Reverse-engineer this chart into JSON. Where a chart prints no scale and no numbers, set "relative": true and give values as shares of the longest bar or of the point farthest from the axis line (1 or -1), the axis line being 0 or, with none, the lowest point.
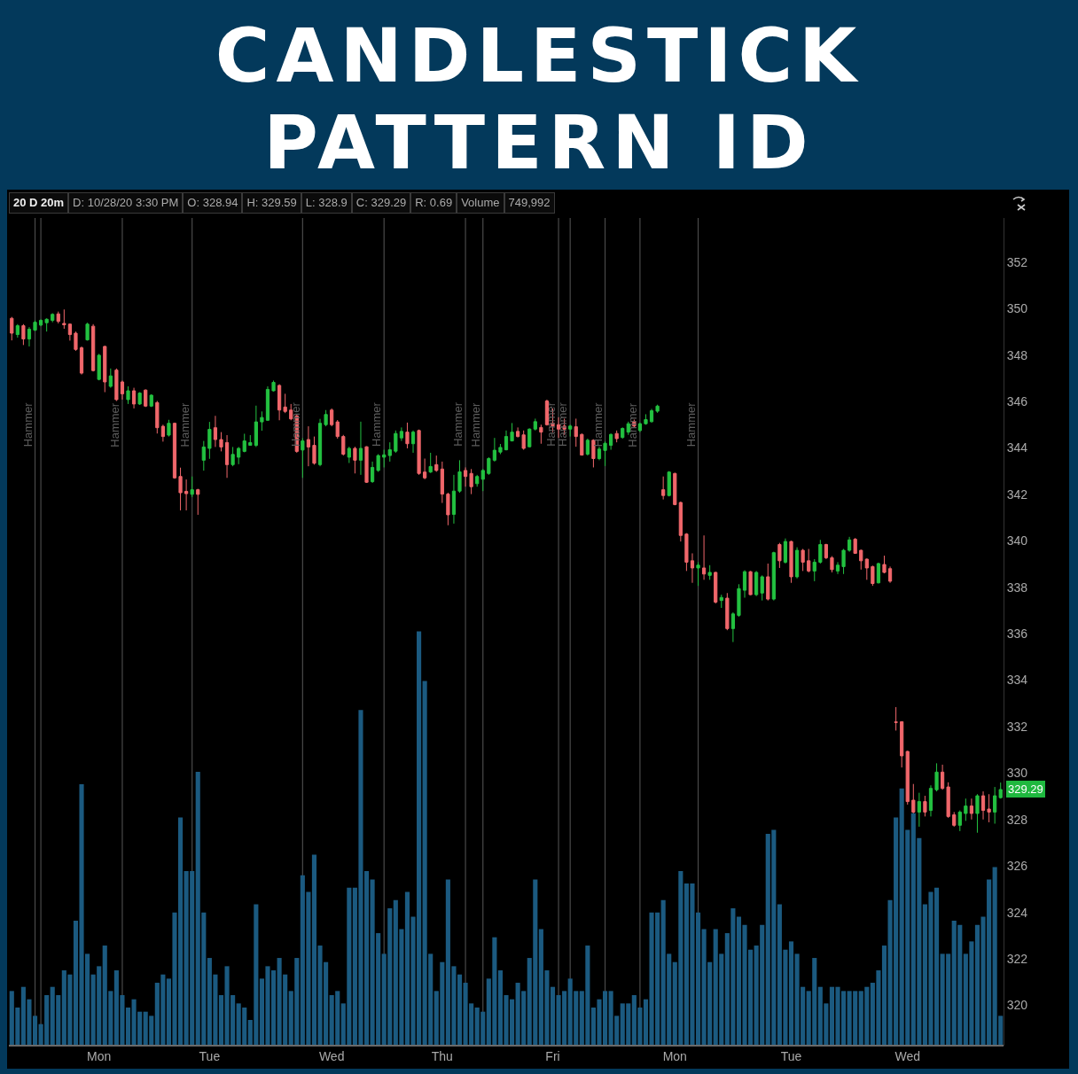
{
  "chart_data": [
    {
      "type": "candlestick",
      "title": "CANDLESTICK PATTERN ID",
      "annotations": [
        "20 D 20m",
        "D: 10/28/20 3:30 PM",
        "O: 328.94",
        "H: 329.59",
        "L: 328.9",
        "C: 329.29",
        "R: 0.69",
        "Volume",
        "749,992",
        "Hammer",
        "Hammer",
        "Hammer",
        "Hammer",
        "Hammer",
        "Hammer",
        "Hammer",
        "Hammer",
        "Hammer",
        "Hammer",
        "Hammer",
        "Hammer",
        {
          "text": "329.29",
          "y": 329.29
        }
      ],
      "categories": [
        null,
        null,
        null,
        null,
        null,
        null,
        null,
        null,
        null,
        null,
        null,
        null,
        null,
        null,
        null,
        "Mon",
        null,
        null,
        null,
        null,
        null,
        null,
        null,
        null,
        null,
        null,
        null,
        null,
        null,
        null,
        null,
        null,
        null,
        null,
        "Tue",
        null,
        null,
        null,
        null,
        null,
        null,
        null,
        null,
        null,
        null,
        null,
        null,
        null,
        null,
        null,
        null,
        null,
        null,
        null,
        null,
        "Wed",
        null,
        null,
        null,
        null,
        null,
        null,
        null,
        null,
        null,
        null,
        null,
        null,
        null,
        null,
        null,
        null,
        null,
        null,
        "Thu",
        null,
        null,
        null,
        null,
        null,
        null,
        null,
        null,
        null,
        null,
        null,
        null,
        null,
        null,
        null,
        null,
        null,
        null,
        "Fri",
        null,
        null,
        null,
        null,
        null,
        null,
        null,
        null,
        null,
        null,
        null,
        null,
        null,
        null,
        null,
        null,
        null,
        null,
        null,
        null,
        "Mon",
        null,
        null,
        null,
        null,
        null,
        null,
        null,
        null,
        null,
        null,
        null,
        null,
        null,
        null,
        null,
        null,
        null,
        null,
        null,
        "Tue",
        null,
        null,
        null,
        null,
        null,
        null,
        null,
        null,
        null,
        null,
        null,
        null,
        null,
        null,
        null,
        null,
        null,
        null,
        null,
        "Wed",
        null,
        null,
        null,
        null,
        null,
        null,
        null,
        null,
        null,
        null,
        null,
        null,
        null,
        null,
        null,
        null
      ],
      "ohlc": [
        [
          349.58,
          349.64,
          348.63,
          348.94
        ],
        [
          348.88,
          349.33,
          348.75,
          349.26
        ],
        [
          349.26,
          349.33,
          348.43,
          348.69
        ],
        [
          348.69,
          349.2,
          348.37,
          349.11
        ],
        [
          349.07,
          349.49,
          349.03,
          349.41
        ],
        [
          349.29,
          349.54,
          349.24,
          349.49
        ],
        [
          349.39,
          349.58,
          349.01,
          349.54
        ],
        [
          349.49,
          349.8,
          349.41,
          349.75
        ],
        [
          349.77,
          349.87,
          349.36,
          349.45
        ],
        [
          349.36,
          349.96,
          349.13,
          349.3
        ],
        [
          349.33,
          349.36,
          348.62,
          348.88
        ],
        [
          348.94,
          349.01,
          348.18,
          348.24
        ],
        [
          348.31,
          348.37,
          347.16,
          347.22
        ],
        [
          348.65,
          349.39,
          348.62,
          349.33
        ],
        [
          349.24,
          349.33,
          347.29,
          347.33
        ],
        [
          346.95,
          348.05,
          346.91,
          347.99
        ],
        [
          348.37,
          348.4,
          346.4,
          346.84
        ],
        [
          346.65,
          347.42,
          346.59,
          347.1
        ],
        [
          347.35,
          347.42,
          346.02,
          346.08
        ],
        [
          346.84,
          346.9,
          346.08,
          346.33
        ],
        [
          346.08,
          346.65,
          345.89,
          346.46
        ],
        [
          346.46,
          346.59,
          345.7,
          345.89
        ],
        [
          345.89,
          346.4,
          345.85,
          346.36
        ],
        [
          346.49,
          346.52,
          345.76,
          345.8
        ],
        [
          345.8,
          346.31,
          345.76,
          346.27
        ],
        [
          345.95,
          346.02,
          344.62,
          344.87
        ],
        [
          344.93,
          345,
          344.27,
          344.49
        ],
        [
          344.55,
          345.21,
          344.49,
          345.06
        ],
        [
          345.06,
          345.09,
          342.67,
          342.71
        ],
        [
          342.77,
          343.15,
          341.31,
          342.07
        ],
        [
          342.13,
          342.64,
          341.31,
          342.03
        ],
        [
          342,
          342.77,
          341.88,
          342.2
        ],
        [
          342.2,
          342.24,
          341.12,
          342
        ],
        [
          343.47,
          344.3,
          343.02,
          344.04
        ],
        [
          343.98,
          345.12,
          343.53,
          344.8
        ],
        [
          344.87,
          345.38,
          344.04,
          344.36
        ],
        [
          344.36,
          344.68,
          343.85,
          344.04
        ],
        [
          344.23,
          344.55,
          342.71,
          343.28
        ],
        [
          343.28,
          344.04,
          343.21,
          343.72
        ],
        [
          343.6,
          344.04,
          343.3,
          343.98
        ],
        [
          343.85,
          344.61,
          343.81,
          344.3
        ],
        [
          344.11,
          344.55,
          344.11,
          344.23
        ],
        [
          344.11,
          345.82,
          344.04,
          345.12
        ],
        [
          345.12,
          345.57,
          344.74,
          345.31
        ],
        [
          345.19,
          346.65,
          345.16,
          346.52
        ],
        [
          346.46,
          346.9,
          346.43,
          346.82
        ],
        [
          346.69,
          346.74,
          345.19,
          345.63
        ],
        [
          345.76,
          346.33,
          345.5,
          345.57
        ],
        [
          345.63,
          345.89,
          345.19,
          345.25
        ],
        [
          345.38,
          345.44,
          343.79,
          343.85
        ],
        [
          343.91,
          344.42,
          342.71,
          344.3
        ],
        [
          344.36,
          344.93,
          343.21,
          344.04
        ],
        [
          344.11,
          344.49,
          343.28,
          343.34
        ],
        [
          343.28,
          345.25,
          343.21,
          345.06
        ],
        [
          345,
          345.63,
          344.93,
          345.44
        ],
        [
          345.63,
          345.7,
          344.93,
          345
        ],
        [
          345.12,
          345.2,
          344.4,
          344.49
        ],
        [
          344.49,
          344.56,
          343.67,
          343.73
        ],
        [
          343.6,
          344.05,
          343.35,
          343.98
        ],
        [
          343.98,
          344.05,
          342.9,
          343.47
        ],
        [
          343.47,
          345.13,
          342.84,
          343.98
        ],
        [
          344.05,
          344.07,
          342.49,
          342.52
        ],
        [
          342.55,
          343.41,
          342.49,
          343.16
        ],
        [
          343.03,
          343.73,
          342.97,
          343.67
        ],
        [
          343.6,
          343.92,
          343.16,
          343.7
        ],
        [
          343.67,
          344.24,
          343.41,
          343.92
        ],
        [
          343.86,
          344.75,
          343.79,
          344.62
        ],
        [
          344.43,
          344.88,
          344.3,
          344.71
        ],
        [
          344.68,
          345.09,
          343.98,
          344.18
        ],
        [
          344.18,
          344.75,
          343.79,
          344.68
        ],
        [
          344.75,
          344.79,
          342.84,
          342.9
        ],
        [
          342.96,
          343.54,
          342.65,
          342.71
        ],
        [
          342.96,
          343.79,
          342.92,
          343.2
        ],
        [
          343.28,
          343.67,
          342.97,
          343.03
        ],
        [
          343.09,
          343.41,
          341.63,
          342.01
        ],
        [
          342.01,
          342.07,
          340.67,
          341.12
        ],
        [
          341.14,
          342.84,
          340.74,
          342.14
        ],
        [
          342.14,
          343.47,
          342.07,
          342.97
        ],
        [
          343.03,
          343.16,
          342.33,
          342.77
        ],
        [
          342.9,
          343.09,
          342.01,
          342.33
        ],
        [
          342.46,
          342.84,
          342.33,
          342.77
        ],
        [
          342.65,
          343.09,
          342.14,
          343.03
        ],
        [
          342.9,
          343.6,
          342.84,
          343.54
        ],
        [
          343.47,
          344.43,
          343.41,
          343.9
        ],
        [
          343.82,
          344.17,
          343.73,
          344.02
        ],
        [
          343.92,
          344.75,
          343.89,
          344.49
        ],
        [
          344.3,
          345.07,
          344.28,
          344.68
        ],
        [
          344.71,
          344.88,
          344.45,
          344.49
        ],
        [
          344.56,
          344.75,
          343.92,
          343.98
        ],
        [
          344.05,
          344.84,
          344.02,
          344.81
        ],
        [
          344.81,
          345.26,
          344.75,
          345.13
        ],
        [
          344.88,
          345,
          344.18,
          344.68
        ],
        [
          346.02,
          346.08,
          344.96,
          345
        ],
        [
          345.07,
          345.7,
          344.68,
          344.94
        ],
        [
          345,
          345.32,
          344.43,
          344.81
        ],
        [
          344.94,
          345.26,
          344.56,
          344.81
        ],
        [
          344.81,
          345,
          344.49,
          344.94
        ],
        [
          344.91,
          345.26,
          344.05,
          344.49
        ],
        [
          344.58,
          344.62,
          343.67,
          343.69
        ],
        [
          343.73,
          344.4,
          343.67,
          344.33
        ],
        [
          344.33,
          344.37,
          343.16,
          343.54
        ],
        [
          343.54,
          344.05,
          343.47,
          343.95
        ],
        [
          343.89,
          344.28,
          343.22,
          344.2
        ],
        [
          344.11,
          344.62,
          343.92,
          344.58
        ],
        [
          344.62,
          344.75,
          344.24,
          344.4
        ],
        [
          344.45,
          344.88,
          344.4,
          344.84
        ],
        [
          344.68,
          345.13,
          344.56,
          345.04
        ],
        [
          345.13,
          345.22,
          344.88,
          344.94
        ],
        [
          344.75,
          345.09,
          344.68,
          345.04
        ],
        [
          345.04,
          345.45,
          345,
          345.22
        ],
        [
          345.13,
          345.68,
          345.09,
          345.6
        ],
        [
          345.58,
          345.86,
          345.51,
          345.8
        ],
        [
          342.2,
          342.77,
          341.78,
          341.95
        ],
        [
          341.95,
          343,
          341.91,
          342.96
        ],
        [
          342.9,
          342.93,
          341.53,
          341.56
        ],
        [
          341.65,
          341.69,
          339.97,
          340.23
        ],
        [
          340.29,
          340.33,
          338.7,
          339.08
        ],
        [
          339.14,
          339.46,
          338.19,
          338.83
        ],
        [
          338.83,
          339.08,
          338.06,
          338.95
        ],
        [
          338.83,
          340.23,
          338.32,
          338.57
        ],
        [
          338.51,
          338.95,
          338.32,
          338.64
        ],
        [
          338.64,
          338.67,
          337.3,
          337.36
        ],
        [
          337.43,
          337.68,
          337.11,
          337.56
        ],
        [
          337.53,
          337.75,
          336.15,
          336.22
        ],
        [
          336.22,
          336.92,
          335.64,
          336.85
        ],
        [
          336.79,
          338.13,
          336.73,
          337.94
        ],
        [
          337.87,
          338.73,
          337.55,
          338.67
        ],
        [
          338.67,
          338.7,
          337.66,
          337.68
        ],
        [
          337.68,
          338.7,
          337.62,
          338.64
        ],
        [
          337.75,
          338.51,
          337.43,
          338.45
        ],
        [
          338.45,
          339.02,
          337.43,
          337.49
        ],
        [
          337.49,
          339.53,
          337.43,
          339.49
        ],
        [
          339.84,
          339.91,
          338.83,
          339.14
        ],
        [
          339.08,
          340.1,
          339.02,
          339.97
        ],
        [
          339.97,
          340,
          338.19,
          338.45
        ],
        [
          338.45,
          339.72,
          338.38,
          339.59
        ],
        [
          339.59,
          339.65,
          338.7,
          339.08
        ],
        [
          339.14,
          339.65,
          338.64,
          338.7
        ],
        [
          338.7,
          339.21,
          338.26,
          339.08
        ],
        [
          339.08,
          340.04,
          339.02,
          339.84
        ],
        [
          339.84,
          339.87,
          339.21,
          339.27
        ],
        [
          339.27,
          339.34,
          338.64,
          338.76
        ],
        [
          338.7,
          339.08,
          338.57,
          338.95
        ],
        [
          338.89,
          339.65,
          338.57,
          339.59
        ],
        [
          339.59,
          340.17,
          339.53,
          340.04
        ],
        [
          340.07,
          340.12,
          339.44,
          339.46
        ],
        [
          339.59,
          339.62,
          338.76,
          339.14
        ],
        [
          339.21,
          339.24,
          338.32,
          338.83
        ],
        [
          338.89,
          338.93,
          338.06,
          338.16
        ],
        [
          338.19,
          339.06,
          338.16,
          339.02
        ],
        [
          338.98,
          339.36,
          338.6,
          338.64
        ],
        [
          338.8,
          338.89,
          338.19,
          338.26
        ],
        [
          332.2,
          332.84,
          331.83,
          332.18
        ],
        [
          332.21,
          332.23,
          330.24,
          330.74
        ],
        [
          330.93,
          330.96,
          328.64,
          328.77
        ],
        [
          328.83,
          329.53,
          328.26,
          328.32
        ],
        [
          328.32,
          329.15,
          327.69,
          328.77
        ],
        [
          328.77,
          329.02,
          328.13,
          328.32
        ],
        [
          328.39,
          329.47,
          328.13,
          329.34
        ],
        [
          329.28,
          330.42,
          329.21,
          330.04
        ],
        [
          330.04,
          330.36,
          329.28,
          329.34
        ],
        [
          329.4,
          329.6,
          328.07,
          328.13
        ],
        [
          328.2,
          328.32,
          327.69,
          327.75
        ],
        [
          327.75,
          328.39,
          327.5,
          328.32
        ],
        [
          328.26,
          328.9,
          327.94,
          328.58
        ],
        [
          328.58,
          328.9,
          328,
          328.26
        ],
        [
          328.26,
          329.09,
          327.43,
          329.02
        ],
        [
          329.02,
          329.21,
          328,
          328.39
        ],
        [
          328.45,
          329.09,
          327.88,
          328.32
        ],
        [
          328.32,
          329.4,
          327.82,
          329.02
        ],
        [
          328.94,
          329.59,
          328.9,
          329.29
        ]
      ],
      "ylim": [
        318.3,
        353.9
      ],
      "yticks": [
        320,
        322,
        324,
        326,
        328,
        330,
        332,
        334,
        336,
        338,
        340,
        342,
        344,
        346,
        348,
        350,
        352
      ],
      "grid": false
    },
    {
      "type": "bar",
      "relative": true,
      "color": "#1b5a80",
      "categories": [
        null,
        null,
        null,
        null,
        null,
        null,
        null,
        null,
        null,
        null,
        null,
        null,
        null,
        null,
        null,
        null,
        null,
        null,
        null,
        null,
        null,
        null,
        null,
        null,
        null,
        null,
        null,
        null,
        null,
        null,
        null,
        null,
        null,
        null,
        null,
        null,
        null,
        null,
        null,
        null,
        null,
        null,
        null,
        null,
        null,
        null,
        null,
        null,
        null,
        null,
        null,
        null,
        null,
        null,
        null,
        null,
        null,
        null,
        null,
        null,
        null,
        null,
        null,
        null,
        null,
        null,
        null,
        null,
        null,
        null,
        null,
        null,
        null,
        null,
        null,
        null,
        null,
        null,
        null,
        null,
        null,
        null,
        null,
        null,
        null,
        null,
        null,
        null,
        null,
        null,
        null,
        null,
        null,
        null,
        null,
        null,
        null,
        null,
        null,
        null,
        null,
        null,
        null,
        null,
        null,
        null,
        null,
        null,
        null,
        null,
        null,
        null,
        null,
        null,
        null,
        null,
        null,
        null,
        null,
        null,
        null,
        null,
        null,
        null,
        null,
        null,
        null,
        null,
        null,
        null,
        null,
        null,
        null,
        null,
        null,
        null,
        null,
        null,
        null,
        null,
        null,
        null,
        null,
        null,
        null,
        null,
        null,
        null,
        null,
        null,
        null,
        null,
        null,
        null,
        null,
        null,
        null,
        null,
        null,
        null,
        null,
        null,
        null,
        null,
        null,
        null,
        null,
        null,
        null,
        null,
        null
      ],
      "values": [
        0.13,
        0.09,
        0.14,
        0.11,
        0.07,
        0.05,
        0.12,
        0.14,
        0.12,
        0.18,
        0.17,
        0.3,
        0.63,
        0.22,
        0.17,
        0.19,
        0.24,
        0.13,
        0.18,
        0.12,
        0.09,
        0.11,
        0.08,
        0.08,
        0.07,
        0.15,
        0.17,
        0.16,
        0.32,
        0.55,
        0.42,
        0.42,
        0.66,
        0.32,
        0.21,
        0.17,
        0.12,
        0.19,
        0.12,
        0.1,
        0.09,
        0.06,
        0.34,
        0.16,
        0.19,
        0.18,
        0.21,
        0.17,
        0.13,
        0.21,
        0.41,
        0.37,
        0.46,
        0.24,
        0.2,
        0.12,
        0.13,
        0.1,
        0.38,
        0.38,
        0.81,
        0.42,
        0.4,
        0.27,
        0.22,
        0.33,
        0.35,
        0.28,
        0.37,
        0.31,
        1,
        0.88,
        0.22,
        0.13,
        0.2,
        0.4,
        0.19,
        0.17,
        0.15,
        0.1,
        0.09,
        0.08,
        0.16,
        0.26,
        0.18,
        0.12,
        0.11,
        0.15,
        0.13,
        0.21,
        0.4,
        0.28,
        0.18,
        0.14,
        0.12,
        0.13,
        0.16,
        0.13,
        0.13,
        0.24,
        0.09,
        0.11,
        0.13,
        0.13,
        0.07,
        0.1,
        0.1,
        0.12,
        0.09,
        0.11,
        0.32,
        0.32,
        0.35,
        0.22,
        0.2,
        0.42,
        0.39,
        0.39,
        0.32,
        0.28,
        0.2,
        0.28,
        0.22,
        0.27,
        0.33,
        0.31,
        0.29,
        0.23,
        0.24,
        0.29,
        0.51,
        0.52,
        0.34,
        0.23,
        0.25,
        0.22,
        0.14,
        0.13,
        0.21,
        0.14,
        0.1,
        0.14,
        0.14,
        0.13,
        0.13,
        0.13,
        0.13,
        0.14,
        0.15,
        0.18,
        0.24,
        0.35,
        0.55,
        0.62,
        0.52,
        0.56,
        0.5,
        0.34,
        0.37,
        0.38,
        0.22,
        0.22,
        0.3,
        0.29,
        0.22,
        0.25,
        0.29,
        0.31,
        0.4,
        0.43,
        0.07
      ]
    }
  ]
}
